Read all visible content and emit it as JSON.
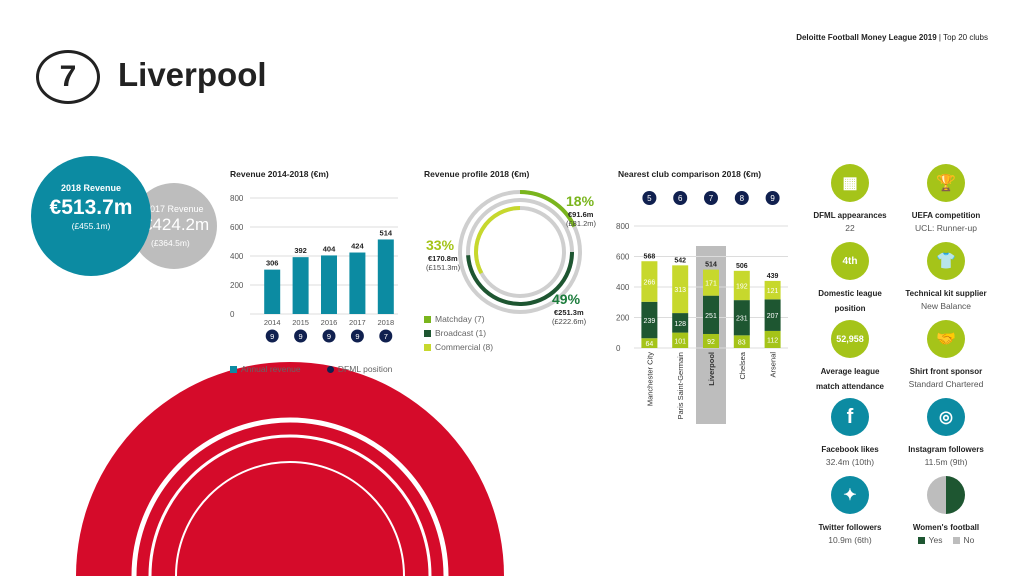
{
  "header": {
    "source": "Deloitte Football Money League 2019",
    "divider": "|",
    "section": "Top 20 clubs"
  },
  "club": {
    "rank": "7",
    "name": "Liverpool"
  },
  "colors": {
    "teal": "#0c8ba2",
    "grey": "#bdbdbd",
    "navy": "#10204f",
    "dark_green": "#1e5631",
    "mid_green": "#1c7c3c",
    "lime": "#a5c419",
    "light_green": "#c7d82d",
    "red": "#d50b2a"
  },
  "revenue_summary": {
    "current_label": "2018 Revenue",
    "current_value": "€513.7m",
    "current_gbp": "(£455.1m)",
    "prev_label": "2017 Revenue",
    "prev_value": "€424.2m",
    "prev_gbp": "(£364.5m)"
  },
  "legend_revenue": {
    "annual": "Annual revenue",
    "position": "DFML position"
  },
  "legend_profile": {
    "matchday": "Matchday (7)",
    "broadcast": "Broadcast (1)",
    "commercial": "Commercial (8)"
  },
  "kpis": [
    {
      "title": "DFML appearances",
      "value": "22",
      "icon": "calendar-icon"
    },
    {
      "title": "UEFA competition",
      "value": "UCL: Runner-up",
      "icon": "trophy-icon"
    },
    {
      "title": "Domestic league",
      "title2": "position",
      "value": "",
      "badge": "4th"
    },
    {
      "title": "Technical kit supplier",
      "value": "New Balance",
      "icon": "shirt-icon"
    },
    {
      "title": "Average league",
      "title2": "match attendance",
      "value": "",
      "badge": "52,958"
    },
    {
      "title": "Shirt front sponsor",
      "value": "Standard Chartered",
      "icon": "handshake-icon"
    },
    {
      "title": "Facebook likes",
      "value": "32.4m (10th)",
      "icon": "facebook-icon"
    },
    {
      "title": "Instagram followers",
      "value": "11.5m (9th)",
      "icon": "instagram-icon"
    },
    {
      "title": "Twitter followers",
      "value": "10.9m (6th)",
      "icon": "twitter-icon"
    },
    {
      "title": "Women's football",
      "value": "",
      "icon": "womens-football-icon",
      "legend_yes": "Yes",
      "legend_no": "No"
    }
  ],
  "chart_data": [
    {
      "type": "bar",
      "title": "Revenue 2014-2018 (€m)",
      "categories": [
        "2014",
        "2015",
        "2016",
        "2017",
        "2018"
      ],
      "values": [
        306,
        392,
        404,
        424,
        514
      ],
      "positions": [
        "9",
        "9",
        "9",
        "9",
        "7"
      ],
      "ylim": [
        0,
        800
      ],
      "yticks": [
        0,
        200,
        400,
        600,
        800
      ]
    },
    {
      "type": "pie",
      "title": "Revenue profile 2018 (€m)",
      "slices": [
        {
          "name": "Matchday",
          "percent": "18%",
          "value": "€91.6m",
          "gbp": "(£81.2m)",
          "share": 0.18
        },
        {
          "name": "Broadcast",
          "percent": "49%",
          "value": "€251.3m",
          "gbp": "(£222.6m)",
          "share": 0.49
        },
        {
          "name": "Commercial",
          "percent": "33%",
          "value": "€170.8m",
          "gbp": "(£151.3m)",
          "share": 0.33
        }
      ]
    },
    {
      "type": "bar",
      "title": "Nearest club comparison 2018 (€m)",
      "categories": [
        "Manchester City",
        "Paris Saint-Germain",
        "Liverpool",
        "Chelsea",
        "Arsenal"
      ],
      "positions": [
        "5",
        "6",
        "7",
        "8",
        "9"
      ],
      "totals": [
        568,
        542,
        514,
        506,
        439
      ],
      "series": [
        {
          "name": "Matchday",
          "values": [
            64,
            101,
            92,
            83,
            112
          ]
        },
        {
          "name": "Broadcast",
          "values": [
            239,
            128,
            251,
            231,
            207
          ]
        },
        {
          "name": "Commercial",
          "values": [
            266,
            313,
            171,
            192,
            121
          ]
        }
      ],
      "ylim": [
        0,
        800
      ],
      "yticks": [
        0,
        200,
        400,
        600,
        800
      ],
      "highlight": "Liverpool"
    }
  ]
}
